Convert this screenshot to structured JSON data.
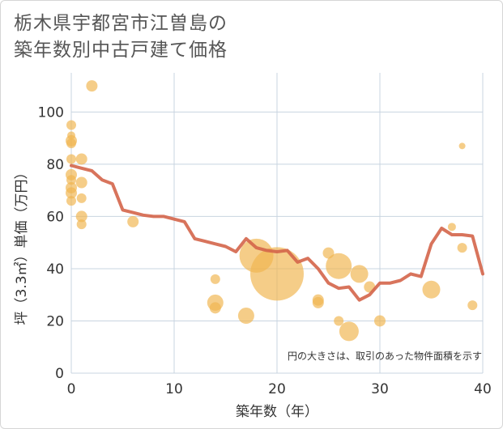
{
  "chart_data": {
    "type": "scatter+line",
    "title_line1": "栃木県宇都宮市江曽島の",
    "title_line2": "築年数別中古戸建て価格",
    "xlabel": "築年数（年）",
    "ylabel": "坪（3.3㎡）単価（万円）",
    "note": "円の大きさは、取引のあった物件面積を示す",
    "xlim": [
      0,
      40
    ],
    "ylim": [
      0,
      115
    ],
    "x_ticks": [
      0,
      10,
      20,
      30,
      40
    ],
    "y_ticks": [
      0,
      20,
      40,
      60,
      80,
      100
    ],
    "colors": {
      "bubble": "#f0b54f",
      "line": "#d4654a",
      "grid": "#c8d4e0"
    },
    "trend_line": {
      "x": [
        0,
        1,
        2,
        3,
        4,
        5,
        6,
        7,
        8,
        9,
        10,
        11,
        12,
        13,
        14,
        15,
        16,
        17,
        18,
        19,
        20,
        21,
        22,
        23,
        24,
        25,
        26,
        27,
        28,
        29,
        30,
        31,
        32,
        33,
        34,
        35,
        36,
        37,
        38,
        39,
        40
      ],
      "y": [
        79.5,
        78.5,
        77.5,
        74,
        72.5,
        62.5,
        61.5,
        60.5,
        60,
        60,
        59,
        58,
        51.5,
        50.5,
        49.5,
        48.5,
        46.5,
        51.5,
        48,
        47,
        46.5,
        47,
        42.5,
        44,
        40,
        34.5,
        32.5,
        33,
        28,
        30,
        34.5,
        34.5,
        35.5,
        38,
        37,
        49.5,
        55.5,
        53,
        53,
        52.5,
        38
      ]
    },
    "bubbles": [
      {
        "x": 0,
        "y": 95,
        "size": 6
      },
      {
        "x": 0,
        "y": 91,
        "size": 5
      },
      {
        "x": 0,
        "y": 89,
        "size": 7
      },
      {
        "x": 0,
        "y": 88,
        "size": 6
      },
      {
        "x": 0,
        "y": 82,
        "size": 6
      },
      {
        "x": 0,
        "y": 76,
        "size": 7
      },
      {
        "x": 0,
        "y": 74,
        "size": 6
      },
      {
        "x": 0,
        "y": 71,
        "size": 7
      },
      {
        "x": 0,
        "y": 69,
        "size": 7
      },
      {
        "x": 0,
        "y": 66,
        "size": 6
      },
      {
        "x": 1,
        "y": 82,
        "size": 7
      },
      {
        "x": 1,
        "y": 73,
        "size": 7
      },
      {
        "x": 1,
        "y": 67,
        "size": 6
      },
      {
        "x": 1,
        "y": 60,
        "size": 7
      },
      {
        "x": 1,
        "y": 57,
        "size": 6
      },
      {
        "x": 2,
        "y": 110,
        "size": 7
      },
      {
        "x": 6,
        "y": 58,
        "size": 7
      },
      {
        "x": 14,
        "y": 36,
        "size": 6
      },
      {
        "x": 14,
        "y": 27,
        "size": 10
      },
      {
        "x": 14,
        "y": 25,
        "size": 7
      },
      {
        "x": 17,
        "y": 22,
        "size": 10
      },
      {
        "x": 18,
        "y": 45,
        "size": 21
      },
      {
        "x": 20,
        "y": 38,
        "size": 33
      },
      {
        "x": 24,
        "y": 28,
        "size": 7
      },
      {
        "x": 24,
        "y": 27,
        "size": 7
      },
      {
        "x": 25,
        "y": 46,
        "size": 7
      },
      {
        "x": 26,
        "y": 41,
        "size": 16
      },
      {
        "x": 26,
        "y": 20,
        "size": 6
      },
      {
        "x": 27,
        "y": 16,
        "size": 12
      },
      {
        "x": 28,
        "y": 38,
        "size": 11
      },
      {
        "x": 29,
        "y": 33,
        "size": 7
      },
      {
        "x": 30,
        "y": 20,
        "size": 7
      },
      {
        "x": 35,
        "y": 32,
        "size": 11
      },
      {
        "x": 37,
        "y": 56,
        "size": 5
      },
      {
        "x": 38,
        "y": 87,
        "size": 4
      },
      {
        "x": 38,
        "y": 48,
        "size": 6
      },
      {
        "x": 39,
        "y": 26,
        "size": 6
      }
    ]
  }
}
